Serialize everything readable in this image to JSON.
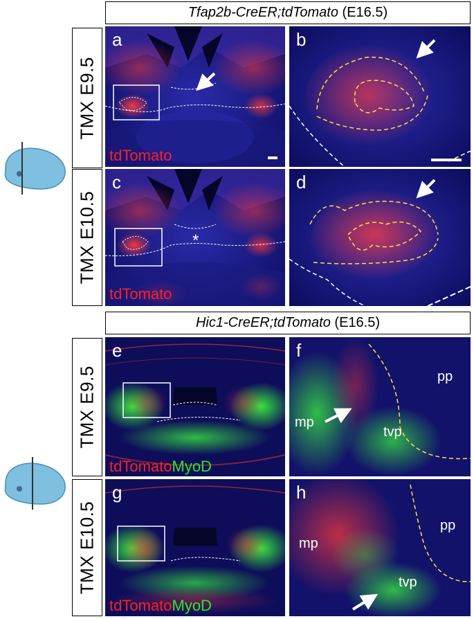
{
  "figure": {
    "top": {
      "header": {
        "genotype": "Tfap2b-CreER;tdTomato",
        "stage": "(E16.5)"
      },
      "rows": [
        {
          "condition": "TMX E9.5",
          "left": {
            "letter": "a",
            "stain": "tdTomato"
          },
          "right": {
            "letter": "b"
          }
        },
        {
          "condition": "TMX E10.5",
          "left": {
            "letter": "c",
            "stain": "tdTomato",
            "marker": "*"
          },
          "right": {
            "letter": "d"
          }
        }
      ]
    },
    "bottom": {
      "header": {
        "genotype": "Hic1-CreER;tdTomato",
        "stage": "(E16.5)"
      },
      "rows": [
        {
          "condition": "TMX E9.5",
          "left": {
            "letter": "e",
            "stain1": "tdTomato",
            "stain2": "MyoD"
          },
          "right": {
            "letter": "f",
            "labels": [
              "mp",
              "tvp",
              "pp"
            ]
          }
        },
        {
          "condition": "TMX E10.5",
          "left": {
            "letter": "g",
            "stain1": "tdTomato",
            "stain2": "MyoD"
          },
          "right": {
            "letter": "h",
            "labels": [
              "mp",
              "tvp",
              "pp"
            ]
          }
        }
      ]
    },
    "colors": {
      "background": "#0b0b55",
      "tdTomato": "#ff2020",
      "MyoD": "#22ee22",
      "outline": "#ffe04a"
    },
    "icons": [
      "mouse-head-icon",
      "arrow-icon"
    ]
  }
}
